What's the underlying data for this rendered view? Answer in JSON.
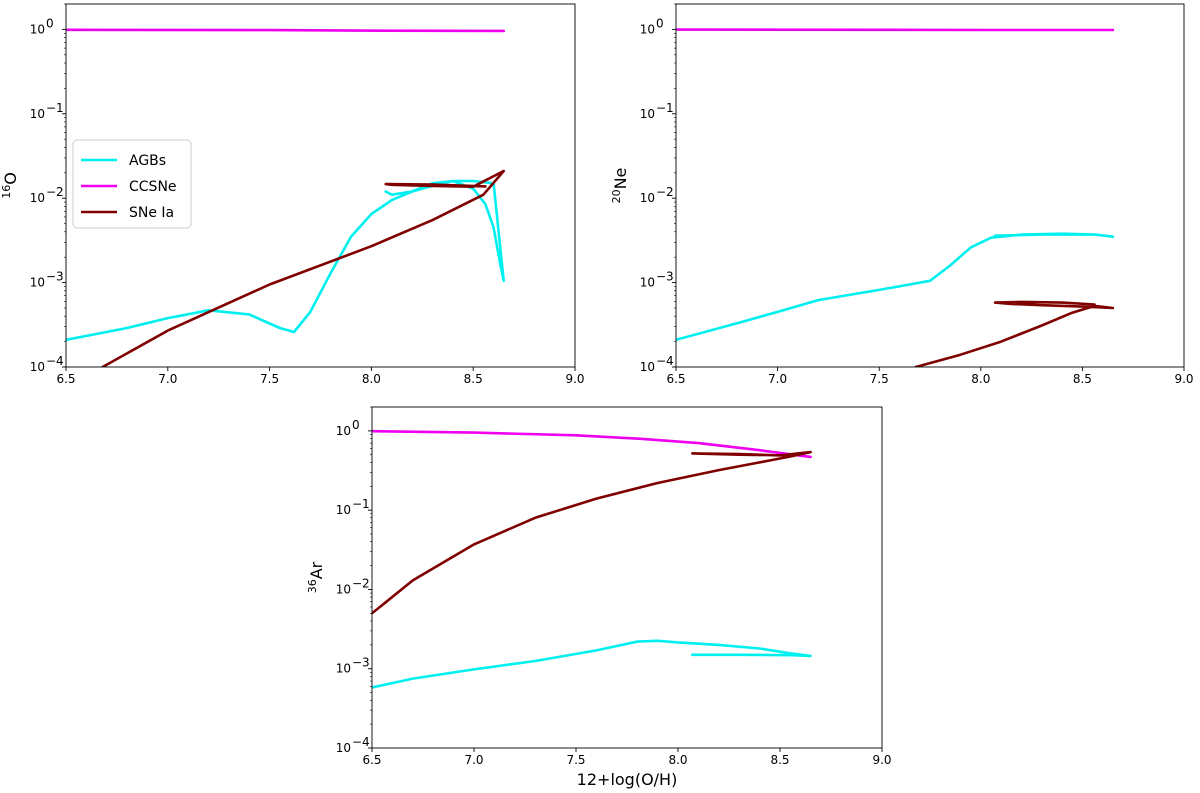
{
  "chart_data": [
    {
      "type": "line",
      "panel": "top-left",
      "ylabel_sup": "16",
      "ylabel_main": "O",
      "xlabel": "",
      "xlim": [
        6.5,
        9.0
      ],
      "ylim": [
        0.0001,
        2
      ],
      "yscale": "log",
      "x_ticks": [
        "6.5",
        "7.0",
        "7.5",
        "8.0",
        "8.5",
        "9.0"
      ],
      "legend": {
        "position": "center-left",
        "entries": [
          {
            "label": "AGBs",
            "color": "#00f0f0"
          },
          {
            "label": "CCSNe",
            "color": "#f000f0"
          },
          {
            "label": "SNe Ia",
            "color": "#800000"
          }
        ]
      },
      "series": [
        {
          "name": "AGBs",
          "color": "#00f0f0",
          "x": [
            6.5,
            6.8,
            7.0,
            7.2,
            7.4,
            7.55,
            7.62,
            7.7,
            7.8,
            7.9,
            8.0,
            8.1,
            8.2,
            8.3,
            8.4,
            8.5,
            8.56,
            8.6,
            8.63,
            8.65,
            8.6,
            8.5,
            8.4,
            8.3,
            8.2,
            8.1,
            8.07
          ],
          "y": [
            0.00021,
            0.00029,
            0.00038,
            0.00047,
            0.00042,
            0.00029,
            0.00026,
            0.00045,
            0.0013,
            0.0035,
            0.0065,
            0.0095,
            0.012,
            0.015,
            0.016,
            0.013,
            0.0085,
            0.0045,
            0.0018,
            0.00105,
            0.015,
            0.016,
            0.016,
            0.014,
            0.012,
            0.011,
            0.012
          ]
        },
        {
          "name": "CCSNe",
          "color": "#f000f0",
          "x": [
            6.5,
            7.5,
            8.07,
            8.65
          ],
          "y": [
            0.99,
            0.98,
            0.965,
            0.96
          ]
        },
        {
          "name": "SNe Ia",
          "color": "#800000",
          "x": [
            6.68,
            7.0,
            7.5,
            8.0,
            8.3,
            8.55,
            8.65,
            8.5,
            8.3,
            8.1,
            8.07,
            8.3,
            8.56
          ],
          "y": [
            0.0001,
            0.00027,
            0.00095,
            0.0027,
            0.0055,
            0.011,
            0.021,
            0.0137,
            0.014,
            0.0144,
            0.0147,
            0.0145,
            0.0138
          ]
        }
      ]
    },
    {
      "type": "line",
      "panel": "top-right",
      "ylabel_sup": "20",
      "ylabel_main": "Ne",
      "xlabel": "",
      "xlim": [
        6.5,
        9.0
      ],
      "ylim": [
        0.0001,
        2
      ],
      "yscale": "log",
      "x_ticks": [
        "6.5",
        "7.0",
        "7.5",
        "8.0",
        "8.5",
        "9.0"
      ],
      "series": [
        {
          "name": "AGBs",
          "color": "#00f0f0",
          "x": [
            6.5,
            6.8,
            7.0,
            7.2,
            7.5,
            7.75,
            7.85,
            7.95,
            8.05,
            8.2,
            8.4,
            8.56,
            8.65,
            8.56,
            8.3,
            8.07
          ],
          "y": [
            0.00021,
            0.00033,
            0.00045,
            0.00062,
            0.00082,
            0.00105,
            0.0016,
            0.0026,
            0.0034,
            0.0037,
            0.0038,
            0.0037,
            0.0035,
            0.0037,
            0.0037,
            0.0036
          ]
        },
        {
          "name": "CCSNe",
          "color": "#f000f0",
          "x": [
            6.5,
            7.5,
            8.07,
            8.65
          ],
          "y": [
            0.995,
            0.99,
            0.985,
            0.985
          ]
        },
        {
          "name": "SNe Ia",
          "color": "#800000",
          "x": [
            7.68,
            7.9,
            8.1,
            8.3,
            8.45,
            8.56,
            8.65,
            8.5,
            8.3,
            8.15,
            8.07,
            8.2,
            8.4,
            8.56
          ],
          "y": [
            0.0001,
            0.00014,
            0.0002,
            0.00031,
            0.00044,
            0.00053,
            0.0005,
            0.00052,
            0.00054,
            0.00056,
            0.00058,
            0.00059,
            0.00058,
            0.00055
          ]
        }
      ]
    },
    {
      "type": "line",
      "panel": "bottom-center",
      "ylabel_sup": "36",
      "ylabel_main": "Ar",
      "xlabel": "12+log(O/H)",
      "xlim": [
        6.5,
        9.0
      ],
      "ylim": [
        0.0001,
        2
      ],
      "yscale": "log",
      "x_ticks": [
        "6.5",
        "7.0",
        "7.5",
        "8.0",
        "8.5",
        "9.0"
      ],
      "series": [
        {
          "name": "AGBs",
          "color": "#00f0f0",
          "x": [
            6.5,
            6.7,
            7.0,
            7.3,
            7.6,
            7.8,
            7.9,
            8.0,
            8.2,
            8.4,
            8.56,
            8.65,
            8.56,
            8.3,
            8.07
          ],
          "y": [
            0.00058,
            0.00075,
            0.00098,
            0.00125,
            0.0017,
            0.0022,
            0.00225,
            0.00215,
            0.002,
            0.0018,
            0.00155,
            0.00145,
            0.00148,
            0.0015,
            0.0015
          ]
        },
        {
          "name": "CCSNe",
          "color": "#f000f0",
          "x": [
            6.5,
            7.0,
            7.5,
            7.8,
            8.1,
            8.4,
            8.65
          ],
          "y": [
            0.99,
            0.95,
            0.88,
            0.8,
            0.7,
            0.57,
            0.47
          ]
        },
        {
          "name": "SNe Ia",
          "color": "#800000",
          "x": [
            6.5,
            6.7,
            7.0,
            7.3,
            7.6,
            7.9,
            8.2,
            8.4,
            8.56,
            8.65,
            8.5,
            8.3,
            8.07,
            8.3,
            8.56
          ],
          "y": [
            0.005,
            0.013,
            0.037,
            0.08,
            0.14,
            0.22,
            0.32,
            0.4,
            0.48,
            0.54,
            0.49,
            0.51,
            0.52,
            0.5,
            0.49
          ]
        }
      ]
    }
  ]
}
